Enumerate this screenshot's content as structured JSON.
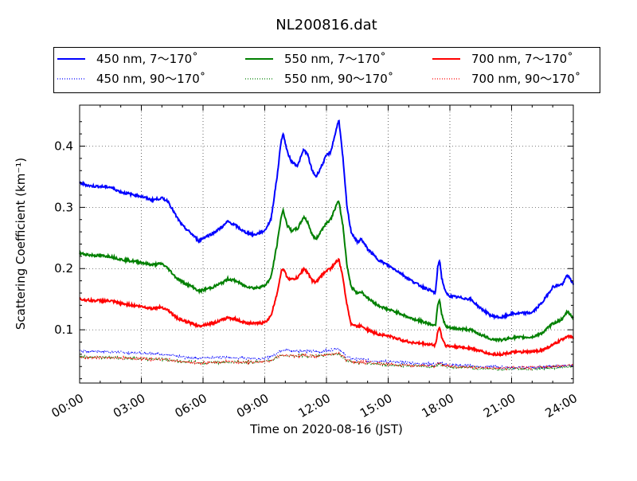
{
  "chart_data": {
    "type": "line",
    "title": "NL200816.dat",
    "xlabel": "Time on 2020-08-16 (JST)",
    "ylabel": "Scattering Coefficient (km⁻¹)",
    "xlim": [
      0,
      24
    ],
    "ylim": [
      0.013,
      0.467
    ],
    "grid": true,
    "legend_placement": "top, above plot",
    "x_ticks": [
      0,
      3,
      6,
      9,
      12,
      15,
      18,
      21,
      24
    ],
    "x_tick_labels": [
      "00:00",
      "03:00",
      "06:00",
      "09:00",
      "12:00",
      "15:00",
      "18:00",
      "21:00",
      "24:00"
    ],
    "y_ticks": [
      0.1,
      0.2,
      0.3,
      0.4
    ],
    "y_tick_labels": [
      "0.1",
      "0.2",
      "0.3",
      "0.4"
    ],
    "x": [
      0,
      0.5,
      1.5,
      2,
      3,
      3.5,
      4,
      4.3,
      4.7,
      5,
      5.5,
      5.8,
      6,
      6.5,
      7,
      7.2,
      7.6,
      8,
      8.5,
      9,
      9.3,
      9.6,
      9.8,
      9.9,
      10.1,
      10.3,
      10.6,
      10.9,
      11.1,
      11.3,
      11.5,
      11.8,
      12,
      12.2,
      12.5,
      12.6,
      12.8,
      13,
      13.2,
      13.5,
      13.7,
      14,
      14.5,
      15,
      15.5,
      16,
      16.5,
      17,
      17.3,
      17.4,
      17.5,
      17.6,
      17.8,
      18,
      19,
      19.5,
      20,
      20.5,
      21,
      22,
      22.5,
      23,
      23.5,
      23.7,
      24
    ],
    "series": [
      {
        "name": "450 nm, 7～170˚",
        "color": "#0000ff",
        "style": "solid",
        "values": [
          0.34,
          0.335,
          0.333,
          0.325,
          0.318,
          0.312,
          0.315,
          0.31,
          0.285,
          0.27,
          0.255,
          0.245,
          0.25,
          0.258,
          0.27,
          0.277,
          0.27,
          0.26,
          0.255,
          0.262,
          0.28,
          0.35,
          0.41,
          0.42,
          0.39,
          0.375,
          0.368,
          0.395,
          0.385,
          0.36,
          0.35,
          0.37,
          0.385,
          0.39,
          0.43,
          0.445,
          0.38,
          0.3,
          0.26,
          0.243,
          0.248,
          0.232,
          0.215,
          0.205,
          0.195,
          0.183,
          0.173,
          0.165,
          0.16,
          0.2,
          0.215,
          0.185,
          0.16,
          0.155,
          0.15,
          0.135,
          0.123,
          0.12,
          0.126,
          0.128,
          0.145,
          0.17,
          0.175,
          0.19,
          0.175
        ]
      },
      {
        "name": "550 nm, 7～170˚",
        "color": "#008000",
        "style": "solid",
        "values": [
          0.225,
          0.222,
          0.22,
          0.215,
          0.21,
          0.206,
          0.208,
          0.2,
          0.185,
          0.178,
          0.17,
          0.163,
          0.165,
          0.17,
          0.178,
          0.183,
          0.18,
          0.172,
          0.168,
          0.172,
          0.185,
          0.24,
          0.285,
          0.295,
          0.27,
          0.262,
          0.265,
          0.285,
          0.275,
          0.255,
          0.248,
          0.265,
          0.275,
          0.28,
          0.305,
          0.31,
          0.27,
          0.205,
          0.17,
          0.16,
          0.162,
          0.152,
          0.14,
          0.133,
          0.128,
          0.12,
          0.115,
          0.11,
          0.107,
          0.14,
          0.15,
          0.125,
          0.105,
          0.103,
          0.1,
          0.092,
          0.085,
          0.083,
          0.087,
          0.088,
          0.095,
          0.11,
          0.118,
          0.13,
          0.12
        ]
      },
      {
        "name": "700 nm, 7～170˚",
        "color": "#ff0000",
        "style": "solid",
        "values": [
          0.15,
          0.148,
          0.147,
          0.143,
          0.138,
          0.135,
          0.137,
          0.132,
          0.12,
          0.115,
          0.11,
          0.106,
          0.108,
          0.111,
          0.117,
          0.12,
          0.117,
          0.112,
          0.11,
          0.112,
          0.122,
          0.16,
          0.195,
          0.2,
          0.185,
          0.182,
          0.185,
          0.2,
          0.193,
          0.18,
          0.178,
          0.19,
          0.197,
          0.2,
          0.212,
          0.215,
          0.185,
          0.14,
          0.11,
          0.105,
          0.107,
          0.1,
          0.093,
          0.09,
          0.085,
          0.08,
          0.078,
          0.076,
          0.075,
          0.095,
          0.105,
          0.088,
          0.074,
          0.073,
          0.07,
          0.065,
          0.06,
          0.06,
          0.063,
          0.064,
          0.067,
          0.075,
          0.085,
          0.09,
          0.087
        ]
      },
      {
        "name": "450 nm, 90～170˚",
        "color": "#0000ff",
        "style": "dotted",
        "values": [
          0.066,
          0.065,
          0.064,
          0.063,
          0.062,
          0.061,
          0.06,
          0.059,
          0.057,
          0.055,
          0.054,
          0.053,
          0.055,
          0.055,
          0.055,
          0.054,
          0.054,
          0.054,
          0.053,
          0.053,
          0.056,
          0.062,
          0.067,
          0.068,
          0.066,
          0.066,
          0.065,
          0.066,
          0.065,
          0.065,
          0.064,
          0.065,
          0.066,
          0.067,
          0.07,
          0.068,
          0.062,
          0.055,
          0.053,
          0.052,
          0.052,
          0.05,
          0.049,
          0.048,
          0.047,
          0.046,
          0.045,
          0.044,
          0.043,
          0.045,
          0.046,
          0.045,
          0.043,
          0.042,
          0.041,
          0.04,
          0.04,
          0.039,
          0.038,
          0.038,
          0.039,
          0.04,
          0.041,
          0.042,
          0.042
        ]
      },
      {
        "name": "550 nm, 90～170˚",
        "color": "#008000",
        "style": "dotted",
        "values": [
          0.056,
          0.055,
          0.055,
          0.054,
          0.053,
          0.052,
          0.052,
          0.051,
          0.049,
          0.048,
          0.047,
          0.046,
          0.046,
          0.047,
          0.047,
          0.047,
          0.047,
          0.047,
          0.047,
          0.048,
          0.05,
          0.055,
          0.058,
          0.059,
          0.058,
          0.057,
          0.057,
          0.058,
          0.057,
          0.057,
          0.057,
          0.058,
          0.059,
          0.06,
          0.062,
          0.061,
          0.056,
          0.049,
          0.047,
          0.046,
          0.046,
          0.045,
          0.044,
          0.043,
          0.042,
          0.041,
          0.041,
          0.04,
          0.04,
          0.042,
          0.043,
          0.042,
          0.04,
          0.039,
          0.038,
          0.037,
          0.036,
          0.036,
          0.036,
          0.036,
          0.037,
          0.038,
          0.039,
          0.04,
          0.04
        ]
      },
      {
        "name": "700 nm, 90～170˚",
        "color": "#ff0000",
        "style": "dotted",
        "values": [
          0.055,
          0.055,
          0.054,
          0.054,
          0.053,
          0.052,
          0.052,
          0.051,
          0.049,
          0.048,
          0.046,
          0.045,
          0.046,
          0.047,
          0.048,
          0.048,
          0.047,
          0.047,
          0.047,
          0.048,
          0.05,
          0.055,
          0.058,
          0.059,
          0.058,
          0.057,
          0.057,
          0.058,
          0.058,
          0.057,
          0.057,
          0.058,
          0.059,
          0.06,
          0.062,
          0.061,
          0.056,
          0.05,
          0.048,
          0.047,
          0.047,
          0.046,
          0.045,
          0.044,
          0.043,
          0.042,
          0.042,
          0.041,
          0.041,
          0.044,
          0.045,
          0.043,
          0.041,
          0.04,
          0.039,
          0.038,
          0.037,
          0.037,
          0.038,
          0.038,
          0.039,
          0.04,
          0.041,
          0.042,
          0.042
        ]
      }
    ]
  }
}
